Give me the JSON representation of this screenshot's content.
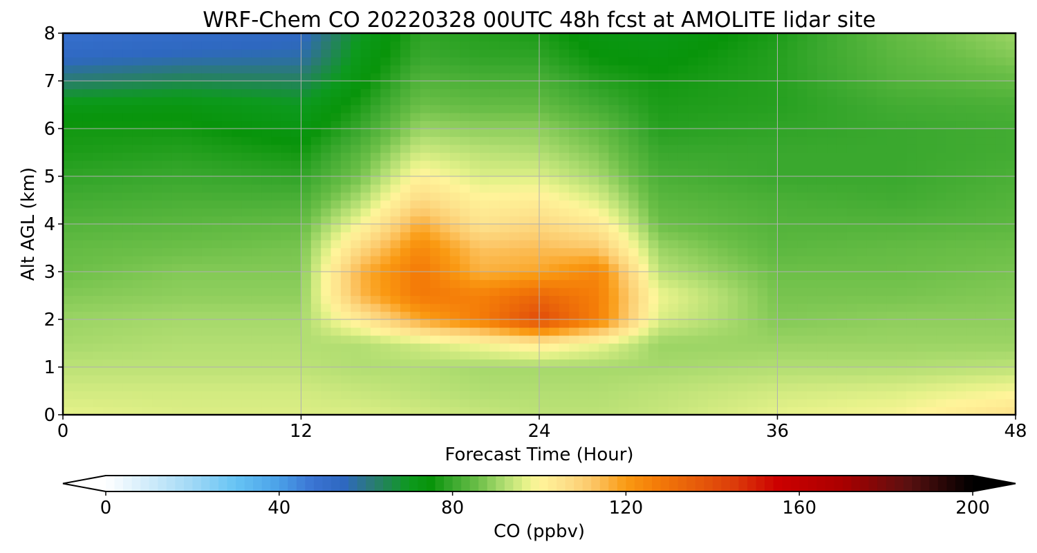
{
  "chart_data": {
    "type": "heatmap",
    "title": "WRF-Chem CO  20220328 00UTC 48h fcst at AMOLITE lidar site",
    "xlabel": "Forecast Time (Hour)",
    "ylabel": "Alt AGL (km)",
    "xlim": [
      0,
      48
    ],
    "ylim": [
      0,
      8
    ],
    "x_ticks": [
      0,
      12,
      24,
      36,
      48
    ],
    "y_ticks": [
      0,
      1,
      2,
      3,
      4,
      5,
      6,
      7,
      8
    ],
    "grid": true,
    "x": [
      0,
      6,
      12,
      15,
      18,
      21,
      24,
      27,
      30,
      36,
      42,
      48
    ],
    "y": [
      0,
      0.5,
      1,
      1.5,
      2,
      2.5,
      3,
      3.5,
      4,
      4.5,
      5,
      5.5,
      6,
      6.5,
      7,
      7.5,
      8
    ],
    "z": [
      [
        97,
        96,
        96,
        96,
        95,
        94,
        93,
        93,
        94,
        97,
        99,
        106
      ],
      [
        95,
        95,
        95,
        94,
        93,
        92,
        92,
        92,
        93,
        95,
        96,
        99
      ],
      [
        93,
        93,
        93,
        92,
        92,
        91,
        91,
        91,
        91,
        92,
        92,
        93
      ],
      [
        91,
        92,
        92,
        92,
        95,
        99,
        103,
        98,
        90,
        90,
        90,
        90
      ],
      [
        90,
        91,
        91,
        103,
        118,
        127,
        141,
        126,
        96,
        88,
        89,
        89
      ],
      [
        88,
        89,
        89,
        115,
        128,
        126,
        133,
        126,
        98,
        87,
        87,
        88
      ],
      [
        86,
        88,
        88,
        116,
        128,
        116,
        118,
        125,
        93,
        86,
        86,
        87
      ],
      [
        85,
        86,
        87,
        108,
        124,
        113,
        114,
        112,
        90,
        84,
        85,
        86
      ],
      [
        83,
        84,
        85,
        99,
        117,
        105,
        108,
        103,
        86,
        83,
        83,
        84
      ],
      [
        81,
        82,
        82,
        92,
        108,
        101,
        102,
        96,
        84,
        82,
        81,
        83
      ],
      [
        79,
        80,
        79,
        87,
        101,
        96,
        96,
        91,
        82,
        80,
        80,
        82
      ],
      [
        77,
        78,
        76,
        84,
        95,
        93,
        92,
        88,
        80,
        80,
        80,
        81
      ],
      [
        76,
        76,
        73,
        80,
        90,
        89,
        89,
        85,
        78,
        79,
        80,
        81
      ],
      [
        72,
        73,
        70,
        77,
        86,
        85,
        85,
        81,
        77,
        78,
        81,
        82
      ],
      [
        62,
        65,
        64,
        74,
        83,
        82,
        82,
        78,
        76,
        78,
        83,
        85
      ],
      [
        54,
        56,
        57,
        72,
        80,
        79,
        79,
        75,
        74,
        78,
        84,
        88
      ],
      [
        50,
        52,
        54,
        70,
        79,
        78,
        77,
        73,
        72,
        77,
        85,
        90
      ]
    ],
    "colorbar": {
      "label": "CO  (ppbv)",
      "min": 0,
      "max": 200,
      "ticks": [
        0,
        40,
        80,
        120,
        160,
        200
      ],
      "extend": "both",
      "orientation": "horizontal",
      "position": "bottom"
    },
    "colormap": [
      {
        "v": 0,
        "c": "#ffffff"
      },
      {
        "v": 20,
        "c": "#a0d8f6"
      },
      {
        "v": 30,
        "c": "#66c4f4"
      },
      {
        "v": 40,
        "c": "#4aa0e8"
      },
      {
        "v": 48,
        "c": "#3a72d2"
      },
      {
        "v": 55,
        "c": "#2e68c0"
      },
      {
        "v": 62,
        "c": "#2a7c70"
      },
      {
        "v": 70,
        "c": "#0d9a1e"
      },
      {
        "v": 75,
        "c": "#08940a"
      },
      {
        "v": 80,
        "c": "#3aa82e"
      },
      {
        "v": 86,
        "c": "#6cbf48"
      },
      {
        "v": 92,
        "c": "#b2de72"
      },
      {
        "v": 97,
        "c": "#e6f28a"
      },
      {
        "v": 100,
        "c": "#fff49a"
      },
      {
        "v": 106,
        "c": "#fde08a"
      },
      {
        "v": 112,
        "c": "#fcc86a"
      },
      {
        "v": 120,
        "c": "#fa9a12"
      },
      {
        "v": 127,
        "c": "#f47c08"
      },
      {
        "v": 135,
        "c": "#e8600a"
      },
      {
        "v": 145,
        "c": "#dc3c0a"
      },
      {
        "v": 155,
        "c": "#cc0000"
      },
      {
        "v": 170,
        "c": "#aa0000"
      },
      {
        "v": 185,
        "c": "#5a1010"
      },
      {
        "v": 200,
        "c": "#000000"
      }
    ]
  }
}
